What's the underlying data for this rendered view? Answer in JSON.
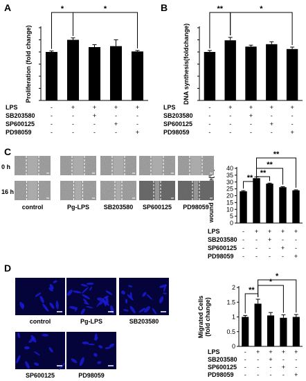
{
  "panels": {
    "A": {
      "letter": "A"
    },
    "B": {
      "letter": "B"
    },
    "C": {
      "letter": "C",
      "time_labels": [
        "0 h",
        "16 h"
      ],
      "image_labels": [
        "control",
        "Pg-LPS",
        "SB203580",
        "SP600125",
        "PD98059"
      ]
    },
    "D": {
      "letter": "D",
      "image_labels": [
        "control",
        "Pg-LPS",
        "SB203580",
        "SP600125",
        "PD98059"
      ]
    }
  },
  "treatment_rows": [
    "LPS",
    "SB203580",
    "SP600125",
    "PD98059"
  ],
  "treatment_signs": [
    [
      "-",
      "+",
      "+",
      "+",
      "+"
    ],
    [
      "-",
      "-",
      "+",
      "-",
      "-"
    ],
    [
      "-",
      "-",
      "-",
      "+",
      "-"
    ],
    [
      "-",
      "-",
      "-",
      "-",
      "+"
    ]
  ],
  "colors": {
    "bars": "#000000",
    "cell_fluorescence": "#1a1ad6",
    "cell_background": "#04043a",
    "scratch_image": "#8a8a8a"
  },
  "chart_data": [
    {
      "type": "bar",
      "panel": "A",
      "categories": [
        "control",
        "LPS",
        "LPS+SB203580",
        "LPS+SP600125",
        "LPS+PD98059"
      ],
      "values": [
        1.0,
        1.25,
        1.1,
        1.12,
        1.01
      ],
      "errors": [
        0.02,
        0.04,
        0.05,
        0.13,
        0.02
      ],
      "ylabel": "Proliferation (fold change)",
      "ylim": [
        0,
        1.5
      ],
      "yticks": [
        0,
        0.25,
        0.5,
        0.75,
        1.0,
        1.25,
        1.5
      ],
      "ytick_labels": [
        "",
        "",
        "",
        "",
        "",
        "",
        ""
      ],
      "significance": [
        {
          "from": 0,
          "to": 1,
          "label": "*"
        },
        {
          "from": 1,
          "to": 4,
          "label": "*"
        }
      ]
    },
    {
      "type": "bar",
      "panel": "B",
      "categories": [
        "control",
        "LPS",
        "LPS+SB203580",
        "LPS+SP600125",
        "LPS+PD98059"
      ],
      "values": [
        1.0,
        1.24,
        1.11,
        1.16,
        1.06
      ],
      "errors": [
        0.03,
        0.06,
        0.03,
        0.05,
        0.04
      ],
      "ylabel": "DNA synthesis(foldchange)",
      "ylim": [
        0,
        1.5
      ],
      "yticks": [
        0,
        0.25,
        0.5,
        0.75,
        1.0,
        1.25,
        1.5
      ],
      "ytick_labels": [
        "",
        "",
        "",
        "",
        "",
        "",
        ""
      ],
      "significance": [
        {
          "from": 0,
          "to": 1,
          "label": "**"
        },
        {
          "from": 1,
          "to": 4,
          "label": "*"
        }
      ]
    },
    {
      "type": "bar",
      "panel": "C",
      "categories": [
        "control",
        "LPS",
        "LPS+SB203580",
        "LPS+SP600125",
        "LPS+PD98059"
      ],
      "values": [
        23.2,
        32.8,
        28.8,
        26.2,
        23.9
      ],
      "errors": [
        0.5,
        0.9,
        0.4,
        0.4,
        0.4
      ],
      "ylabel": "wound closure(%)",
      "ylim": [
        0,
        40
      ],
      "yticks": [
        0,
        5,
        10,
        15,
        20,
        25,
        30,
        35,
        40
      ],
      "ytick_labels": [
        "0",
        "5",
        "10",
        "15",
        "20",
        "25",
        "30",
        "35",
        "40"
      ],
      "significance": [
        {
          "from": 0,
          "to": 1,
          "label": "**"
        },
        {
          "from": 1,
          "to": 2,
          "label": "**"
        },
        {
          "from": 1,
          "to": 3,
          "label": "**"
        },
        {
          "from": 1,
          "to": 4,
          "label": "**"
        }
      ]
    },
    {
      "type": "bar",
      "panel": "D",
      "categories": [
        "control",
        "LPS",
        "LPS+SB203580",
        "LPS+SP600125",
        "LPS+PD98059"
      ],
      "values": [
        1.0,
        1.45,
        1.05,
        0.97,
        1.0
      ],
      "errors": [
        0.05,
        0.15,
        0.1,
        0.1,
        0.08
      ],
      "ylabel": "Migrated Cells\n(fold change)",
      "ylim": [
        0,
        2
      ],
      "yticks": [
        0,
        0.5,
        1,
        1.5,
        2
      ],
      "ytick_labels": [
        "0",
        "0.5",
        "1",
        "1.5",
        "2"
      ],
      "significance": [
        {
          "from": 0,
          "to": 1,
          "label": "**"
        },
        {
          "from": 1,
          "to": 3,
          "label": "*"
        },
        {
          "from": 1,
          "to": 4,
          "label": "*"
        }
      ]
    }
  ]
}
